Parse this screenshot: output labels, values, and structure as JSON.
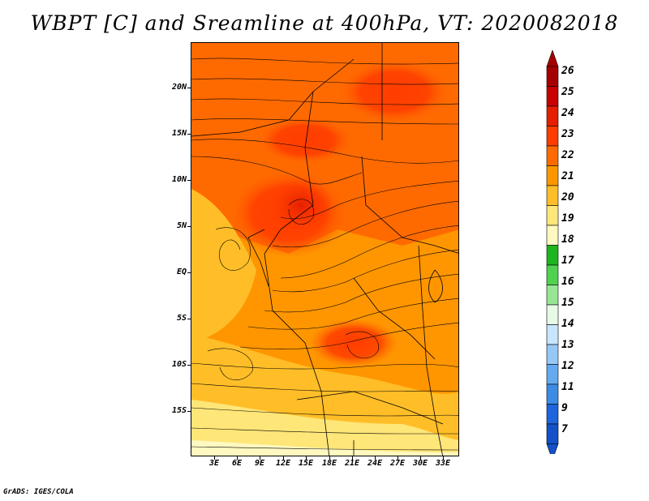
{
  "title": "WBPT [C] and Sreamline at 400hPa, VT: 2020082018",
  "map": {
    "lat_labels": [
      "20N",
      "15N",
      "10N",
      "5N",
      "EQ",
      "5S",
      "10S",
      "15S"
    ],
    "lon_labels": [
      "3E",
      "6E",
      "9E",
      "12E",
      "15E",
      "18E",
      "21E",
      "24E",
      "27E",
      "30E",
      "33E"
    ]
  },
  "colorbar": {
    "labels": [
      "26",
      "25",
      "24",
      "23",
      "22",
      "21",
      "20",
      "19",
      "18",
      "17",
      "16",
      "15",
      "14",
      "13",
      "12",
      "11",
      "9",
      "7"
    ],
    "colors": [
      "#a50000",
      "#c80000",
      "#e61e00",
      "#ff3c00",
      "#ff6a00",
      "#ff9600",
      "#ffbe28",
      "#ffe678",
      "#fff8c0",
      "#1eb41e",
      "#50d250",
      "#96e696",
      "#e6fae6",
      "#c8e6ff",
      "#96c8f5",
      "#64aaf0",
      "#3c8ce6",
      "#1e64dc",
      "#1450c8"
    ],
    "top_arrow_color": "#a50000",
    "bottom_arrow_color": "#1450c8"
  },
  "footer": "GrADS: IGES/COLA"
}
